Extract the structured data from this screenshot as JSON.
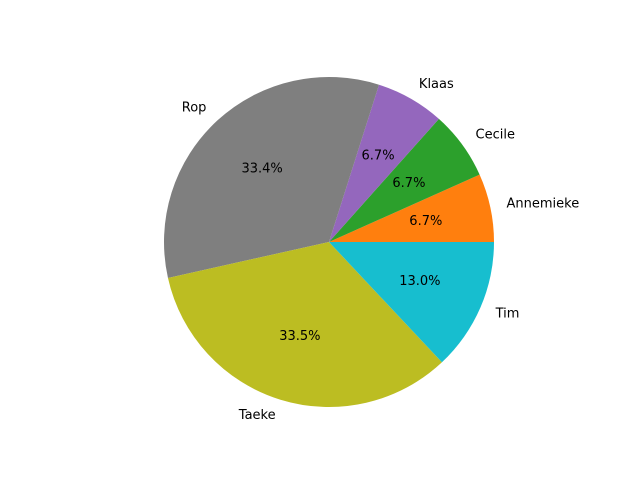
{
  "chart_data": {
    "type": "pie",
    "slices": [
      {
        "label": "Annemieke",
        "value": 6.7,
        "pct_label": "6.7%",
        "color": "#ff7f0e"
      },
      {
        "label": "Cecile",
        "value": 6.7,
        "pct_label": "6.7%",
        "color": "#2ca02c"
      },
      {
        "label": "Klaas",
        "value": 6.7,
        "pct_label": "6.7%",
        "color": "#9467bd"
      },
      {
        "label": "Rop",
        "value": 33.4,
        "pct_label": "33.4%",
        "color": "#7f7f7f"
      },
      {
        "label": "Taeke",
        "value": 33.5,
        "pct_label": "33.5%",
        "color": "#bcbd22"
      },
      {
        "label": "Tim",
        "value": 13.0,
        "pct_label": "13.0%",
        "color": "#17becf"
      }
    ],
    "start_angle_deg": 0,
    "direction": "counterclockwise",
    "legend": "none"
  }
}
